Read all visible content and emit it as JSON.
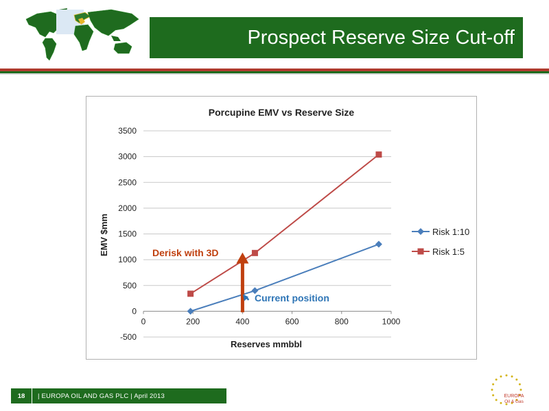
{
  "slide": {
    "title": "Prospect Reserve Size Cut-off",
    "footer": {
      "page_number": "18",
      "text": "| EUROPA OIL AND GAS PLC | April 2013"
    },
    "logo": {
      "line1": "EUROPA",
      "line2": "Oil & Gas"
    }
  },
  "colors": {
    "brand_green": "#1e6b1e",
    "brand_red": "#b03a2e",
    "risk_1_10": "#4a7ebb",
    "risk_1_5": "#be4b48",
    "annotation_red": "#c0400f",
    "annotation_blue": "#2e75b6"
  },
  "chart_data": {
    "type": "line",
    "title": "Porcupine EMV vs Reserve Size",
    "xlabel": "Reserves mmbbl",
    "ylabel": "EMV $mm",
    "xlim": [
      0,
      1000
    ],
    "ylim": [
      -500,
      3500
    ],
    "xticks": [
      0,
      200,
      400,
      600,
      800,
      1000
    ],
    "yticks": [
      -500,
      0,
      500,
      1000,
      1500,
      2000,
      2500,
      3000,
      3500
    ],
    "grid": "horizontal",
    "legend": "right",
    "series": [
      {
        "name": "Risk 1:10",
        "marker": "diamond",
        "color": "#4a7ebb",
        "x": [
          190,
          450,
          950
        ],
        "y": [
          0,
          400,
          1300
        ]
      },
      {
        "name": "Risk 1:5",
        "marker": "square",
        "color": "#be4b48",
        "x": [
          190,
          450,
          950
        ],
        "y": [
          340,
          1130,
          3040
        ]
      }
    ],
    "annotations": [
      {
        "text": "Derisk with 3D",
        "color": "#c0400f"
      },
      {
        "text": "Current position",
        "color": "#2e75b6"
      }
    ]
  }
}
